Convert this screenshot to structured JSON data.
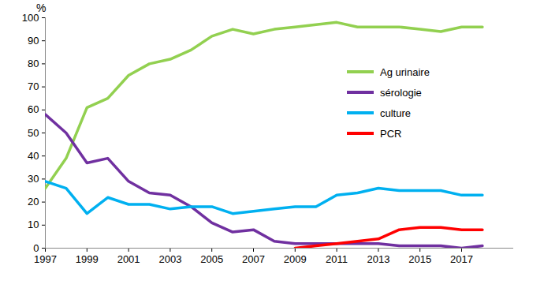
{
  "chart_data": {
    "type": "line",
    "ylabel": "%",
    "x": [
      1997,
      1998,
      1999,
      2000,
      2001,
      2002,
      2003,
      2004,
      2005,
      2006,
      2007,
      2008,
      2009,
      2010,
      2011,
      2012,
      2013,
      2014,
      2015,
      2016,
      2017,
      2018
    ],
    "series": [
      {
        "name": "Ag urinaire",
        "color": "#92d050",
        "values": [
          26,
          39,
          61,
          65,
          75,
          80,
          82,
          86,
          92,
          95,
          93,
          95,
          96,
          97,
          98,
          96,
          96,
          96,
          95,
          94,
          96,
          96
        ]
      },
      {
        "name": "sérologie",
        "color": "#7030a0",
        "values": [
          58,
          50,
          37,
          39,
          29,
          24,
          23,
          18,
          11,
          7,
          8,
          3,
          2,
          2,
          2,
          2,
          2,
          1,
          1,
          1,
          0,
          1
        ]
      },
      {
        "name": "culture",
        "color": "#00b0f0",
        "values": [
          29,
          26,
          15,
          22,
          19,
          19,
          17,
          18,
          18,
          15,
          16,
          17,
          18,
          18,
          23,
          24,
          26,
          25,
          25,
          25,
          23,
          23
        ]
      },
      {
        "name": "PCR",
        "color": "#ff0000",
        "values": [
          null,
          null,
          null,
          null,
          null,
          null,
          null,
          null,
          null,
          null,
          null,
          null,
          0,
          1,
          2,
          3,
          4,
          8,
          9,
          9,
          8,
          8
        ]
      }
    ],
    "xlim": [
      1997,
      2019.5
    ],
    "xticks": [
      1997,
      1999,
      2001,
      2003,
      2005,
      2007,
      2009,
      2011,
      2013,
      2015,
      2017
    ],
    "ylim": [
      0,
      100
    ],
    "yticks": [
      0,
      10,
      20,
      30,
      40,
      50,
      60,
      70,
      80,
      90,
      100
    ],
    "grid": false,
    "legend": "upper right"
  }
}
